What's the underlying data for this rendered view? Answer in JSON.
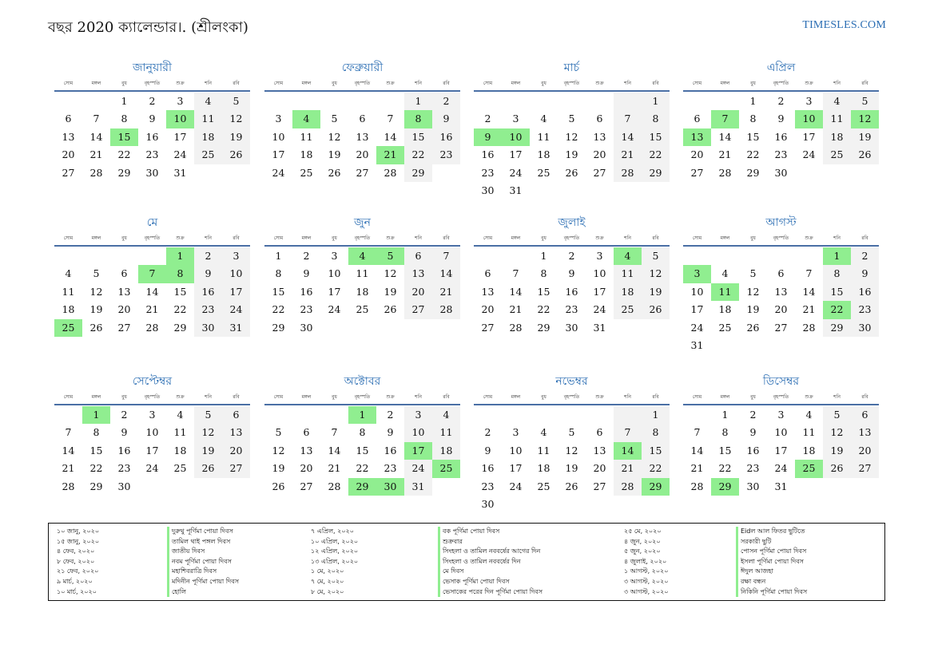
{
  "header": {
    "title": "বছর 2020 ক্যালেন্ডার।. (শ্রীলংকা)",
    "site": "TIMESLES.COM"
  },
  "weekdays": [
    "সোম",
    "মঙ্গল",
    "বুধ",
    "বৃহস্পতি",
    "শুক্র",
    "শনি",
    "রবি"
  ],
  "months": [
    {
      "name": "জানুয়ারী",
      "offset": 2,
      "days": 31,
      "holidays": [
        10,
        15
      ]
    },
    {
      "name": "ফেব্রুয়ারী",
      "offset": 5,
      "days": 29,
      "holidays": [
        4,
        8,
        21
      ]
    },
    {
      "name": "মার্চ",
      "offset": 6,
      "days": 31,
      "holidays": [
        9,
        10
      ]
    },
    {
      "name": "এপ্রিল",
      "offset": 2,
      "days": 30,
      "holidays": [
        7,
        10,
        12,
        13
      ]
    },
    {
      "name": "মে",
      "offset": 4,
      "days": 31,
      "holidays": [
        1,
        7,
        8,
        25
      ]
    },
    {
      "name": "জুন",
      "offset": 0,
      "days": 30,
      "holidays": [
        4,
        5
      ]
    },
    {
      "name": "জুলাই",
      "offset": 2,
      "days": 31,
      "holidays": [
        4
      ]
    },
    {
      "name": "আগস্ট",
      "offset": 5,
      "days": 31,
      "holidays": [
        1,
        3,
        11,
        22
      ]
    },
    {
      "name": "সেপ্টেম্বর",
      "offset": 1,
      "days": 30,
      "holidays": [
        1
      ]
    },
    {
      "name": "অক্টোবর",
      "offset": 3,
      "days": 31,
      "holidays": [
        1,
        17,
        25,
        29,
        30
      ]
    },
    {
      "name": "নভেম্বর",
      "offset": 6,
      "days": 30,
      "holidays": [
        14,
        29
      ]
    },
    {
      "name": "ডিসেম্বর",
      "offset": 1,
      "days": 31,
      "holidays": [
        25,
        29
      ]
    }
  ],
  "legend": [
    [
      {
        "date": "১০ জানু, ২০২০",
        "name": "দুরুথু পূর্ণিমা পোয়া দিবস"
      },
      {
        "date": "১৫ জানু, ২০২০",
        "name": "তামিল থাই পঙ্গল দিবস"
      },
      {
        "date": "৪ ফেব, ২০২০",
        "name": "জাতীয় দিবস"
      },
      {
        "date": "৮ ফেব, ২০২০",
        "name": "নবম পূর্ণিমা পোয়া দিবস"
      },
      {
        "date": "২১ ফেব, ২০২০",
        "name": "মহাশিবরাত্রি দিবস"
      },
      {
        "date": "৯ মার্চ, ২০২০",
        "name": "মদিনীন পূর্ণিমা পোয়া দিবস"
      },
      {
        "date": "১০ মার্চ, ২০২০",
        "name": "হোলি"
      }
    ],
    [
      {
        "date": "৭ এপ্রিল, ২০২০",
        "name": "বক পূর্ণিমা পোয়া দিবস"
      },
      {
        "date": "১০ এপ্রিল, ২০২০",
        "name": "শুক্রবার"
      },
      {
        "date": "১২ এপ্রিল, ২০২০",
        "name": "সিংহলা ও তামিল নববর্ষের আগের দিন"
      },
      {
        "date": "১৩ এপ্রিল, ২০২০",
        "name": "সিংহলা ও তামিল নববর্ষের দিন"
      },
      {
        "date": "১ মে, ২০২০",
        "name": "মে দিবস"
      },
      {
        "date": "৭ মে, ২০২০",
        "name": "ভেসাক পূর্ণিমা পোয়া দিবস"
      },
      {
        "date": "৮ মে, ২০২০",
        "name": "ভেসাকের পরের দিন পূর্ণিমা পোয়া দিবস"
      }
    ],
    [
      {
        "date": "২৫ মে, ২০২০",
        "name": "Eidল আল ফিতর ছুটিতে"
      },
      {
        "date": "৪ জুন, ২০২০",
        "name": "সরকারী ছুটি"
      },
      {
        "date": "৫ জুন, ২০২০",
        "name": "পোসন পূর্ণিমা পোয়া দিবস"
      },
      {
        "date": "৪ জুলাই, ২০২০",
        "name": "ইসলা পূর্ণিমা পোয়া দিবস"
      },
      {
        "date": "১ আগস্ট, ২০২০",
        "name": "ঈদুল আজহা"
      },
      {
        "date": "৩ আগস্ট, ২০২০",
        "name": "রক্ষা বন্ধন"
      },
      {
        "date": "৩ আগস্ট, ২০২০",
        "name": "নিকিনি পূর্ণিমা পোয়া দিবস"
      }
    ]
  ]
}
